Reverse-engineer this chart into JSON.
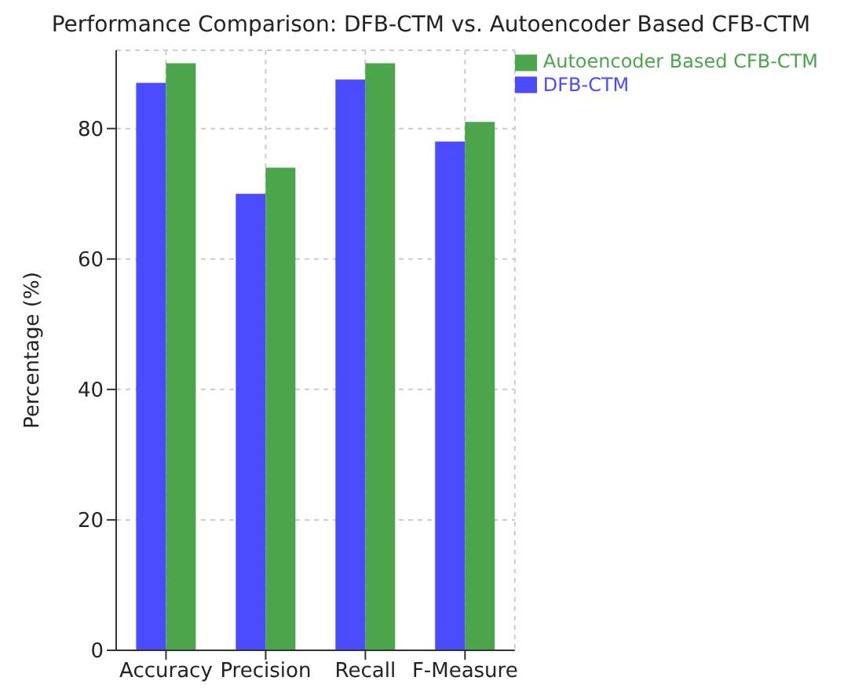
{
  "chart_data": {
    "type": "bar",
    "title": "Performance Comparison: DFB-CTM vs. Autoencoder Based CFB-CTM",
    "ylabel": "Percentage (%)",
    "categories": [
      "Accuracy",
      "Precision",
      "Recall",
      "F-Measure"
    ],
    "series": [
      {
        "name": "DFB-CTM",
        "color": "#4b4bff",
        "values": [
          87,
          70,
          87.5,
          78
        ]
      },
      {
        "name": "Autoencoder Based CFB-CTM",
        "color": "#4ba64b",
        "values": [
          90,
          74,
          90,
          81
        ]
      }
    ],
    "ylim": [
      0,
      92
    ],
    "yticks": [
      0,
      20,
      40,
      60,
      80
    ],
    "grid": true,
    "legend": "top right"
  }
}
